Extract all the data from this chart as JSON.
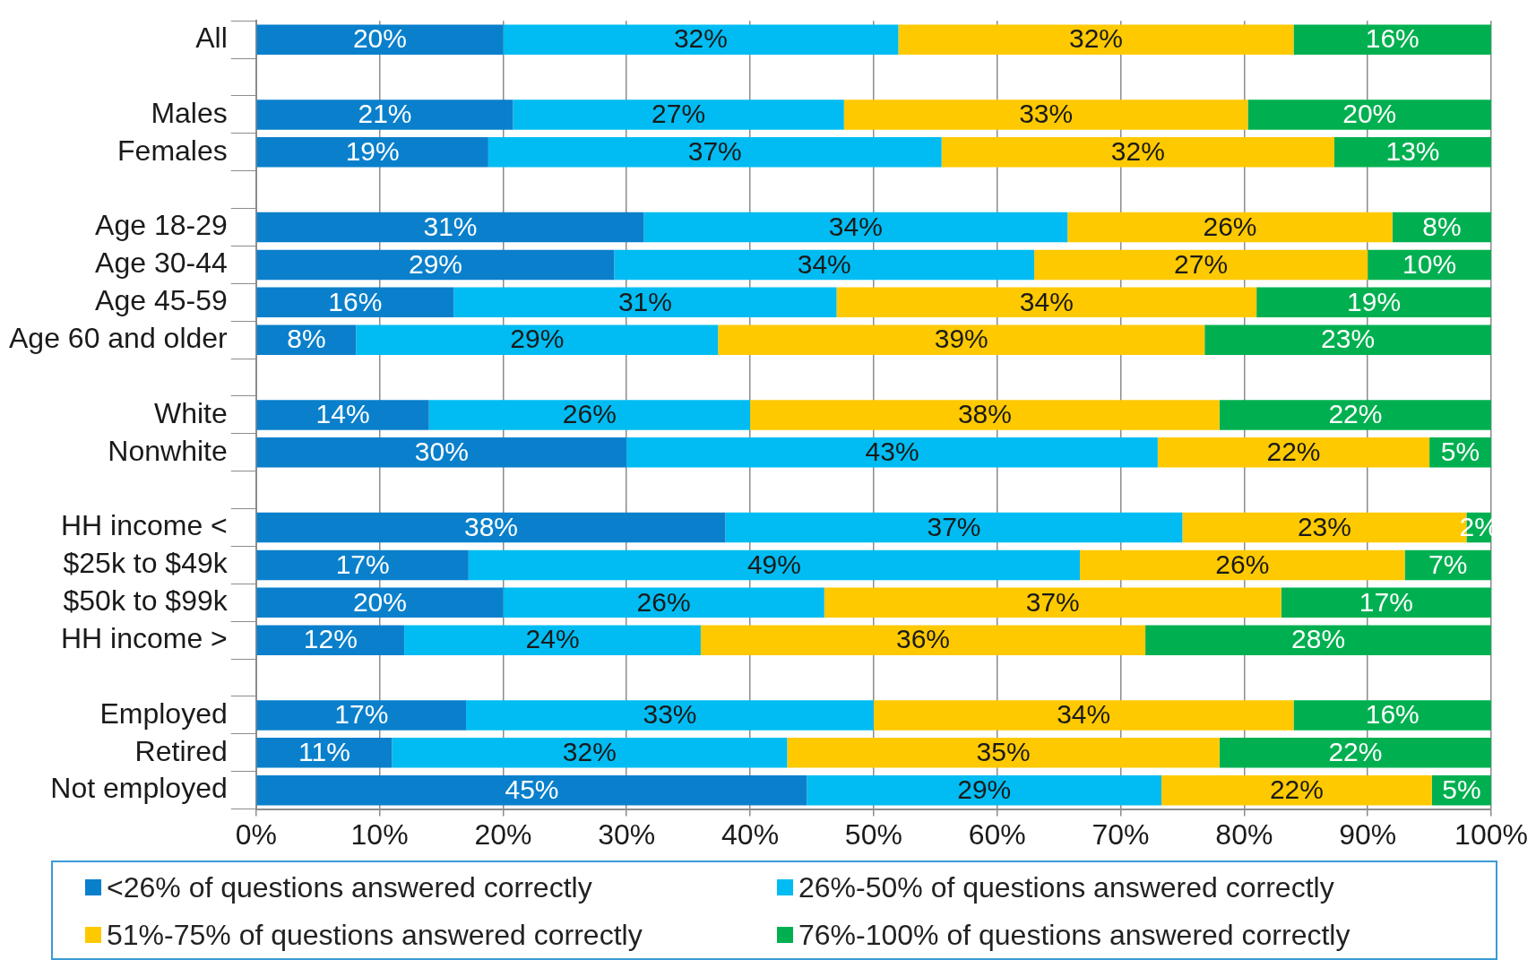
{
  "chart_data": {
    "type": "bar",
    "orientation": "horizontal",
    "stacked": true,
    "categories": [
      "All",
      null,
      "Males",
      "Females",
      null,
      "Age 18-29",
      "Age 30-44",
      "Age 45-59",
      "Age 60 and older",
      null,
      "White",
      "Nonwhite",
      null,
      "HH income <",
      "$25k to $49k",
      "$50k to $99k",
      "HH income >",
      null,
      "Employed",
      "Retired",
      "Not employed"
    ],
    "series": [
      {
        "name": "<26% of questions answered correctly",
        "color": "#0a80cc",
        "values": [
          20,
          null,
          20.8,
          18.8,
          null,
          31.4,
          29,
          16,
          8.1,
          null,
          14,
          30,
          null,
          38,
          17.2,
          20,
          12,
          null,
          17,
          11,
          44.6
        ],
        "value_labels": [
          "20%",
          null,
          "21%",
          "19%",
          null,
          "31%",
          "29%",
          "16%",
          "8%",
          null,
          "14%",
          "30%",
          null,
          "38%",
          "17%",
          "20%",
          "12%",
          null,
          "17%",
          "11%",
          "45%"
        ]
      },
      {
        "name": "26%-50% of questions answered correctly",
        "color": "#00bcf2",
        "values": [
          32,
          null,
          26.8,
          36.7,
          null,
          34.3,
          34,
          31,
          29.3,
          null,
          26,
          43,
          null,
          37,
          49.5,
          26,
          24,
          null,
          33,
          32,
          28.7
        ],
        "value_labels": [
          "32%",
          null,
          "27%",
          "37%",
          null,
          "34%",
          "34%",
          "31%",
          "29%",
          null,
          "26%",
          "43%",
          null,
          "37%",
          "49%",
          "26%",
          "24%",
          null,
          "33%",
          "32%",
          "29%"
        ]
      },
      {
        "name": "51%-75% of questions answered correctly",
        "color": "#ffc900",
        "values": [
          32,
          null,
          32.7,
          31.8,
          null,
          26.3,
          27,
          34,
          39.4,
          null,
          38,
          22,
          null,
          23,
          26.3,
          37,
          36,
          null,
          34,
          35,
          21.9
        ],
        "value_labels": [
          "32%",
          null,
          "33%",
          "32%",
          null,
          "26%",
          "27%",
          "34%",
          "39%",
          null,
          "38%",
          "22%",
          null,
          "23%",
          "26%",
          "37%",
          "36%",
          null,
          "34%",
          "35%",
          "22%"
        ]
      },
      {
        "name": "76%-100% of questions answered correctly",
        "color": "#00b050",
        "values": [
          16,
          null,
          19.7,
          12.7,
          null,
          8,
          10,
          19,
          23.2,
          null,
          22,
          5,
          null,
          2,
          7,
          17,
          28,
          null,
          16,
          22,
          4.8
        ],
        "value_labels": [
          "16%",
          null,
          "20%",
          "13%",
          null,
          "8%",
          "10%",
          "19%",
          "23%",
          null,
          "22%",
          "5%",
          null,
          "2%",
          "7%",
          "17%",
          "28%",
          null,
          "16%",
          "22%",
          "5%"
        ]
      }
    ],
    "xlim": [
      0,
      100
    ],
    "xticks": [
      {
        "value": 0,
        "label": "0%"
      },
      {
        "value": 10,
        "label": "10%"
      },
      {
        "value": 20,
        "label": "20%"
      },
      {
        "value": 30,
        "label": "30%"
      },
      {
        "value": 40,
        "label": "40%"
      },
      {
        "value": 50,
        "label": "50%"
      },
      {
        "value": 60,
        "label": "60%"
      },
      {
        "value": 70,
        "label": "70%"
      },
      {
        "value": 80,
        "label": "80%"
      },
      {
        "value": 90,
        "label": "90%"
      },
      {
        "value": 100,
        "label": "100%"
      }
    ],
    "grid": "x",
    "legend": "bottom"
  }
}
